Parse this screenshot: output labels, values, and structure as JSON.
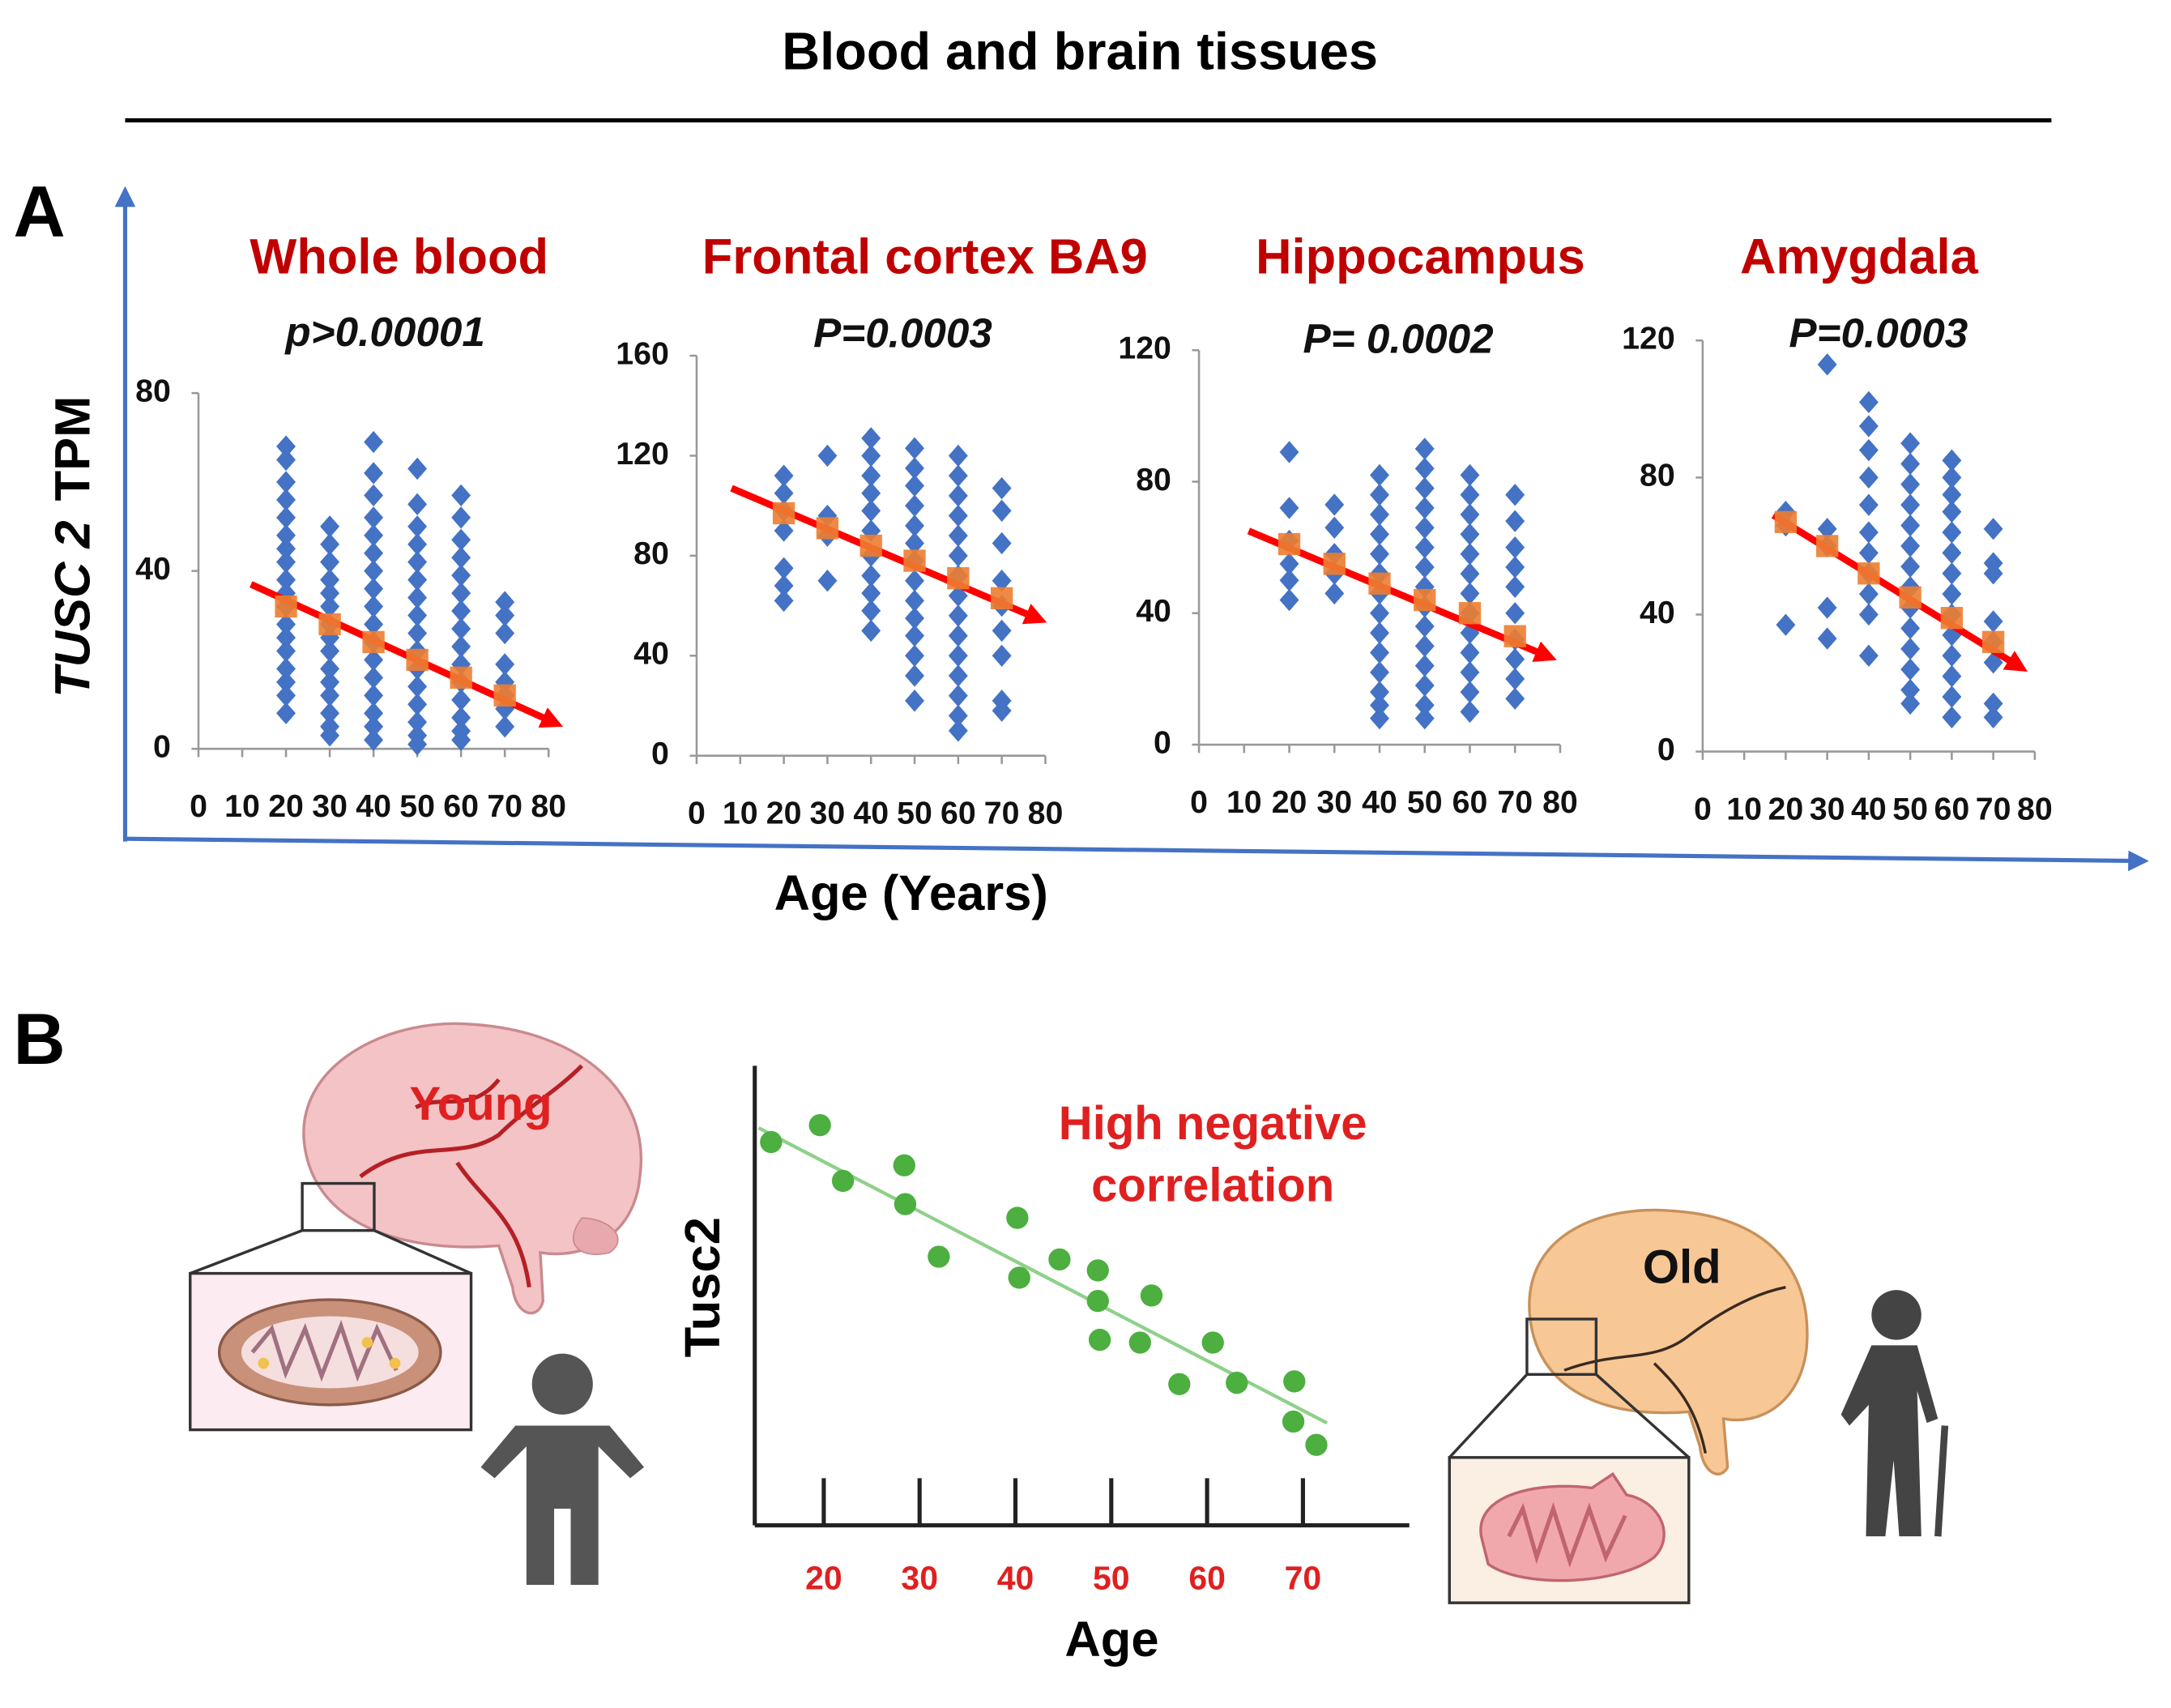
{
  "title": "Blood and brain tissues",
  "panel_labels": [
    "A",
    "B"
  ],
  "ylabel": [
    "TUSC 2",
    "TPM"
  ],
  "xlabel": "Age (Years)",
  "illustration_labels": {
    "young": "Young",
    "old": "Old"
  },
  "chart_data": [
    {
      "type": "scatter",
      "title": "Whole blood",
      "subtitle": "p>0.00001",
      "xlim": [
        0,
        80
      ],
      "xticks": [
        0,
        10,
        20,
        30,
        40,
        50,
        60,
        70,
        80
      ],
      "ylim": [
        0,
        80
      ],
      "yticks": [
        0,
        40,
        80
      ],
      "color": "#4472c4",
      "groups": [
        {
          "x": 20,
          "values": [
            68,
            65,
            60,
            56,
            52,
            48,
            45,
            42,
            38,
            35,
            32,
            28,
            25,
            22,
            18,
            15,
            12,
            8
          ]
        },
        {
          "x": 30,
          "values": [
            50,
            46,
            42,
            38,
            35,
            32,
            28,
            25,
            22,
            18,
            15,
            12,
            8,
            5,
            3
          ]
        },
        {
          "x": 40,
          "values": [
            69,
            62,
            57,
            52,
            48,
            44,
            40,
            36,
            32,
            28,
            24,
            20,
            16,
            12,
            8,
            5,
            2
          ]
        },
        {
          "x": 50,
          "values": [
            63,
            55,
            50,
            46,
            42,
            38,
            34,
            30,
            26,
            22,
            18,
            14,
            10,
            6,
            3,
            1
          ]
        },
        {
          "x": 60,
          "values": [
            57,
            52,
            47,
            43,
            39,
            35,
            31,
            27,
            23,
            19,
            15,
            11,
            7,
            4,
            2
          ]
        },
        {
          "x": 70,
          "values": [
            33,
            30,
            26,
            19,
            15,
            12,
            9,
            5
          ]
        }
      ],
      "means": {
        "color": "#ed7d31",
        "x": [
          20,
          30,
          40,
          50,
          60,
          70
        ],
        "values": [
          32,
          28,
          24,
          20,
          16,
          12
        ]
      },
      "trend": {
        "color": "#ff0000",
        "x": [
          12,
          81
        ],
        "values": [
          37,
          6
        ]
      }
    },
    {
      "type": "scatter",
      "title": "Frontal cortex BA9",
      "subtitle": "P=0.0003",
      "xlim": [
        0,
        80
      ],
      "xticks": [
        0,
        10,
        20,
        30,
        40,
        50,
        60,
        70,
        80
      ],
      "ylim": [
        0,
        160
      ],
      "yticks": [
        0,
        40,
        80,
        120,
        160
      ],
      "color": "#4472c4",
      "groups": [
        {
          "x": 20,
          "values": [
            112,
            105,
            98,
            90,
            75,
            68,
            62
          ]
        },
        {
          "x": 30,
          "values": [
            120,
            96,
            88,
            70
          ]
        },
        {
          "x": 40,
          "values": [
            127,
            120,
            112,
            105,
            98,
            90,
            80,
            72,
            65,
            58,
            50
          ]
        },
        {
          "x": 50,
          "values": [
            123,
            115,
            108,
            100,
            92,
            85,
            78,
            70,
            62,
            55,
            48,
            40,
            32,
            22
          ]
        },
        {
          "x": 60,
          "values": [
            120,
            112,
            104,
            96,
            88,
            80,
            72,
            64,
            56,
            48,
            40,
            32,
            24,
            16,
            10
          ]
        },
        {
          "x": 70,
          "values": [
            107,
            98,
            85,
            70,
            60,
            50,
            40,
            22,
            18
          ]
        }
      ],
      "means": {
        "color": "#ed7d31",
        "x": [
          20,
          30,
          40,
          50,
          60,
          70
        ],
        "values": [
          97,
          91,
          84,
          78,
          71,
          63
        ]
      },
      "trend": {
        "color": "#ff0000",
        "x": [
          8,
          78
        ],
        "values": [
          107,
          55
        ]
      }
    },
    {
      "type": "scatter",
      "title": "Hippocampus",
      "subtitle": "P= 0.0002",
      "xlim": [
        0,
        80
      ],
      "xticks": [
        0,
        10,
        20,
        30,
        40,
        50,
        60,
        70,
        80
      ],
      "ylim": [
        0,
        120
      ],
      "yticks": [
        0,
        40,
        80,
        120
      ],
      "color": "#4472c4",
      "groups": [
        {
          "x": 20,
          "values": [
            89,
            72,
            62,
            55,
            50,
            44
          ]
        },
        {
          "x": 30,
          "values": [
            73,
            66,
            58,
            52,
            46
          ]
        },
        {
          "x": 40,
          "values": [
            82,
            76,
            70,
            64,
            58,
            52,
            46,
            40,
            34,
            28,
            22,
            16,
            12,
            8
          ]
        },
        {
          "x": 50,
          "values": [
            90,
            84,
            78,
            72,
            66,
            60,
            54,
            48,
            42,
            36,
            30,
            24,
            18,
            12,
            8
          ]
        },
        {
          "x": 60,
          "values": [
            82,
            76,
            70,
            64,
            58,
            52,
            46,
            40,
            34,
            28,
            22,
            16,
            10
          ]
        },
        {
          "x": 70,
          "values": [
            76,
            68,
            60,
            54,
            48,
            40,
            32,
            26,
            20,
            14
          ]
        }
      ],
      "means": {
        "color": "#ed7d31",
        "x": [
          20,
          30,
          40,
          50,
          60,
          70
        ],
        "values": [
          61,
          55,
          49,
          44,
          40,
          33
        ]
      },
      "trend": {
        "color": "#ff0000",
        "x": [
          11,
          77
        ],
        "values": [
          65,
          27
        ]
      }
    },
    {
      "type": "scatter",
      "title": "Amygdala",
      "subtitle": "P=0.0003",
      "xlim": [
        0,
        80
      ],
      "xticks": [
        0,
        10,
        20,
        30,
        40,
        50,
        60,
        70,
        80
      ],
      "ylim": [
        0,
        120
      ],
      "yticks": [
        0,
        40,
        80,
        120
      ],
      "color": "#4472c4",
      "groups": [
        {
          "x": 20,
          "values": [
            70,
            66,
            37
          ]
        },
        {
          "x": 30,
          "values": [
            113,
            65,
            60,
            42,
            33
          ]
        },
        {
          "x": 40,
          "values": [
            102,
            95,
            88,
            80,
            72,
            64,
            58,
            52,
            46,
            40,
            28
          ]
        },
        {
          "x": 50,
          "values": [
            90,
            84,
            78,
            72,
            66,
            60,
            54,
            48,
            42,
            36,
            30,
            24,
            18,
            14
          ]
        },
        {
          "x": 60,
          "values": [
            85,
            80,
            75,
            70,
            64,
            58,
            52,
            46,
            40,
            34,
            28,
            22,
            16,
            10
          ]
        },
        {
          "x": 70,
          "values": [
            65,
            55,
            52,
            38,
            32,
            26,
            14,
            10
          ]
        }
      ],
      "means": {
        "color": "#ed7d31",
        "x": [
          20,
          30,
          40,
          50,
          60,
          70
        ],
        "values": [
          67,
          60,
          52,
          45,
          39,
          32
        ]
      },
      "trend": {
        "color": "#ff0000",
        "x": [
          17,
          76
        ],
        "values": [
          69,
          25
        ]
      }
    },
    {
      "type": "scatter",
      "annotation": [
        "High negative",
        "correlation"
      ],
      "xlabel": "Age",
      "ylabel": "Tusc2",
      "xlim": [
        12.8,
        81.1
      ],
      "xticks": [
        20,
        30,
        40,
        50,
        60,
        70
      ],
      "ylim": [
        0,
        100
      ],
      "color": "#4caf3f",
      "tick_color": "#e02020",
      "x": [
        14.5,
        19.6,
        22.0,
        28.4,
        28.5,
        32.0,
        40.2,
        40.4,
        44.6,
        48.6,
        48.6,
        48.8,
        53.0,
        54.2,
        57.1,
        60.6,
        63.1,
        69.1,
        69.0,
        71.4
      ],
      "values": [
        83.3,
        87.0,
        74.8,
        78.2,
        69.7,
        58.2,
        66.7,
        53.6,
        57.6,
        55.2,
        48.5,
        40.0,
        39.4,
        49.7,
        30.3,
        39.4,
        30.6,
        30.9,
        22.1,
        17.0
      ],
      "trend": {
        "color": "#8fd08a",
        "x": [
          13.2,
          72.5
        ],
        "values": [
          86.4,
          21.8
        ]
      }
    }
  ]
}
